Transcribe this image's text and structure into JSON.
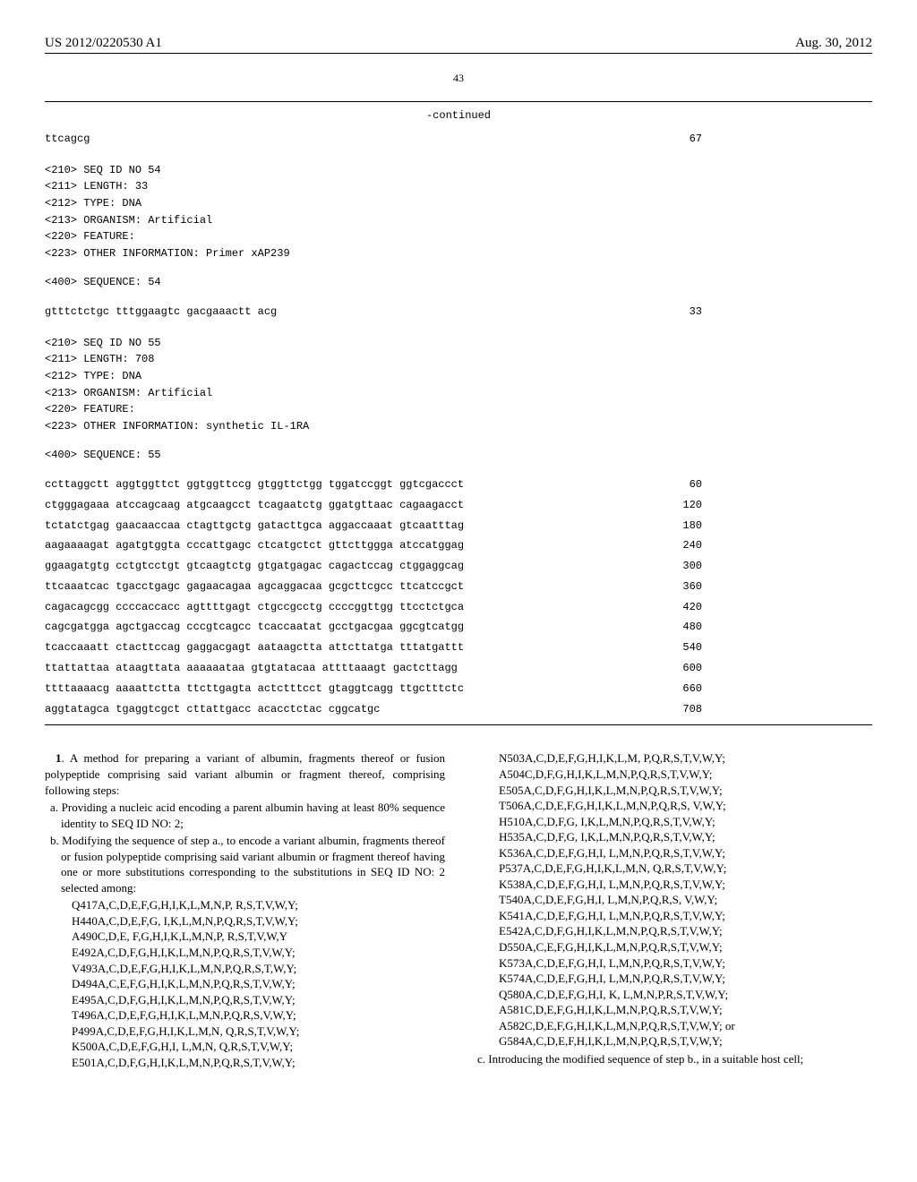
{
  "header": {
    "pub_number": "US 2012/0220530 A1",
    "date": "Aug. 30, 2012"
  },
  "page_number": "43",
  "continued_label": "-continued",
  "seq_top": {
    "line": "ttcagcg",
    "num": "67"
  },
  "seq54": {
    "tags": [
      "<210> SEQ ID NO 54",
      "<211> LENGTH: 33",
      "<212> TYPE: DNA",
      "<213> ORGANISM: Artificial",
      "<220> FEATURE:",
      "<223> OTHER INFORMATION: Primer xAP239"
    ],
    "seq_label": "<400> SEQUENCE: 54",
    "line": "gtttctctgc tttggaagtc gacgaaactt acg",
    "num": "33"
  },
  "seq55": {
    "tags": [
      "<210> SEQ ID NO 55",
      "<211> LENGTH: 708",
      "<212> TYPE: DNA",
      "<213> ORGANISM: Artificial",
      "<220> FEATURE:",
      "<223> OTHER INFORMATION: synthetic IL-1RA"
    ],
    "seq_label": "<400> SEQUENCE: 55",
    "lines": [
      {
        "seq": "ccttaggctt aggtggttct ggtggttccg gtggttctgg tggatccggt ggtcgaccct",
        "num": "60"
      },
      {
        "seq": "ctgggagaaa atccagcaag atgcaagcct tcagaatctg ggatgttaac cagaagacct",
        "num": "120"
      },
      {
        "seq": "tctatctgag gaacaaccaa ctagttgctg gatacttgca aggaccaaat gtcaatttag",
        "num": "180"
      },
      {
        "seq": "aagaaaagat agatgtggta cccattgagc ctcatgctct gttcttggga atccatggag",
        "num": "240"
      },
      {
        "seq": "ggaagatgtg cctgtcctgt gtcaagtctg gtgatgagac cagactccag ctggaggcag",
        "num": "300"
      },
      {
        "seq": "ttcaaatcac tgacctgagc gagaacagaa agcaggacaa gcgcttcgcc ttcatccgct",
        "num": "360"
      },
      {
        "seq": "cagacagcgg ccccaccacc agttttgagt ctgccgcctg ccccggttgg ttcctctgca",
        "num": "420"
      },
      {
        "seq": "cagcgatgga agctgaccag cccgtcagcc tcaccaatat gcctgacgaa ggcgtcatgg",
        "num": "480"
      },
      {
        "seq": "tcaccaaatt ctacttccag gaggacgagt aataagctta attcttatga tttatgattt",
        "num": "540"
      },
      {
        "seq": "ttattattaa ataagttata aaaaaataa gtgtatacaa attttaaagt gactcttagg",
        "num": "600"
      },
      {
        "seq": "ttttaaaacg aaaattctta ttcttgagta actctttcct gtaggtcagg ttgctttctc",
        "num": "660"
      },
      {
        "seq": "aggtatagca tgaggtcgct cttattgacc acacctctac cggcatgc",
        "num": "708"
      }
    ]
  },
  "claim1": {
    "intro_num": "1",
    "intro_text": ". A method for preparing a variant of albumin, fragments thereof or fusion polypeptide comprising said variant albumin or fragment thereof, comprising following steps:",
    "step_a": "a. Providing a nucleic acid encoding a parent albumin having at least 80% sequence identity to SEQ ID NO: 2;",
    "step_b": "b. Modifying the sequence of step a., to encode a variant albumin, fragments thereof or fusion polypeptide comprising said variant albumin or fragment thereof having one or more substitutions corresponding to the substitutions in SEQ ID NO: 2 selected among:",
    "subs_left": [
      "Q417A,C,D,E,F,G,H,I,K,L,M,N,P, R,S,T,V,W,Y;",
      "H440A,C,D,E,F,G, I,K,L,M,N,P,Q,R,S,T,V,W,Y;",
      "A490C,D,E, F,G,H,I,K,L,M,N,P, R,S,T,V,W,Y",
      "E492A,C,D,F,G,H,I,K,L,M,N,P,Q,R,S,T,V,W,Y;",
      "V493A,C,D,E,F,G,H,I,K,L,M,N,P,Q,R,S,T,W,Y;",
      "D494A,C,E,F,G,H,I,K,L,M,N,P,Q,R,S,T,V,W,Y;",
      "E495A,C,D,F,G,H,I,K,L,M,N,P,Q,R,S,T,V,W,Y;",
      "T496A,C,D,E,F,G,H,I,K,L,M,N,P,Q,R,S,V,W,Y;",
      "P499A,C,D,E,F,G,H,I,K,L,M,N, Q,R,S,T,V,W,Y;",
      "K500A,C,D,E,F,G,H,I, L,M,N, Q,R,S,T,V,W,Y;",
      "E501A,C,D,F,G,H,I,K,L,M,N,P,Q,R,S,T,V,W,Y;"
    ],
    "subs_right": [
      "N503A,C,D,E,F,G,H,I,K,L,M, P,Q,R,S,T,V,W,Y;",
      "A504C,D,F,G,H,I,K,L,M,N,P,Q,R,S,T,V,W,Y;",
      "E505A,C,D,F,G,H,I,K,L,M,N,P,Q,R,S,T,V,W,Y;",
      "T506A,C,D,E,F,G,H,I,K,L,M,N,P,Q,R,S, V,W,Y;",
      "H510A,C,D,F,G, I,K,L,M,N,P,Q,R,S,T,V,W,Y;",
      "H535A,C,D,F,G, I,K,L,M,N,P,Q,R,S,T,V,W,Y;",
      "K536A,C,D,E,F,G,H,I, L,M,N,P,Q,R,S,T,V,W,Y;",
      "P537A,C,D,E,F,G,H,I,K,L,M,N, Q,R,S,T,V,W,Y;",
      "K538A,C,D,E,F,G,H,I, L,M,N,P,Q,R,S,T,V,W,Y;",
      "T540A,C,D,E,F,G,H,I, L,M,N,P,Q,R,S, V,W,Y;",
      "K541A,C,D,E,F,G,H,I, L,M,N,P,Q,R,S,T,V,W,Y;",
      "E542A,C,D,F,G,H,I,K,L,M,N,P,Q,R,S,T,V,W,Y;",
      "D550A,C,E,F,G,H,I,K,L,M,N,P,Q,R,S,T,V,W,Y;",
      "K573A,C,D,E,F,G,H,I, L,M,N,P,Q,R,S,T,V,W,Y;",
      "K574A,C,D,E,F,G,H,I, L,M,N,P,Q,R,S,T,V,W,Y;",
      "Q580A,C,D,E,F,G,H,I, K, L,M,N,P,R,S,T,V,W,Y;",
      "A581C,D,E,F,G,H,I,K,L,M,N,P,Q,R,S,T,V,W,Y;",
      "A582C,D,E,F,G,H,I,K,L,M,N,P,Q,R,S,T,V,W,Y; or",
      "G584A,C,D,E,F,H,I,K,L,M,N,P,Q,R,S,T,V,W,Y;"
    ],
    "step_c": "c. Introducing the modified sequence of step b., in a suitable host cell;"
  }
}
